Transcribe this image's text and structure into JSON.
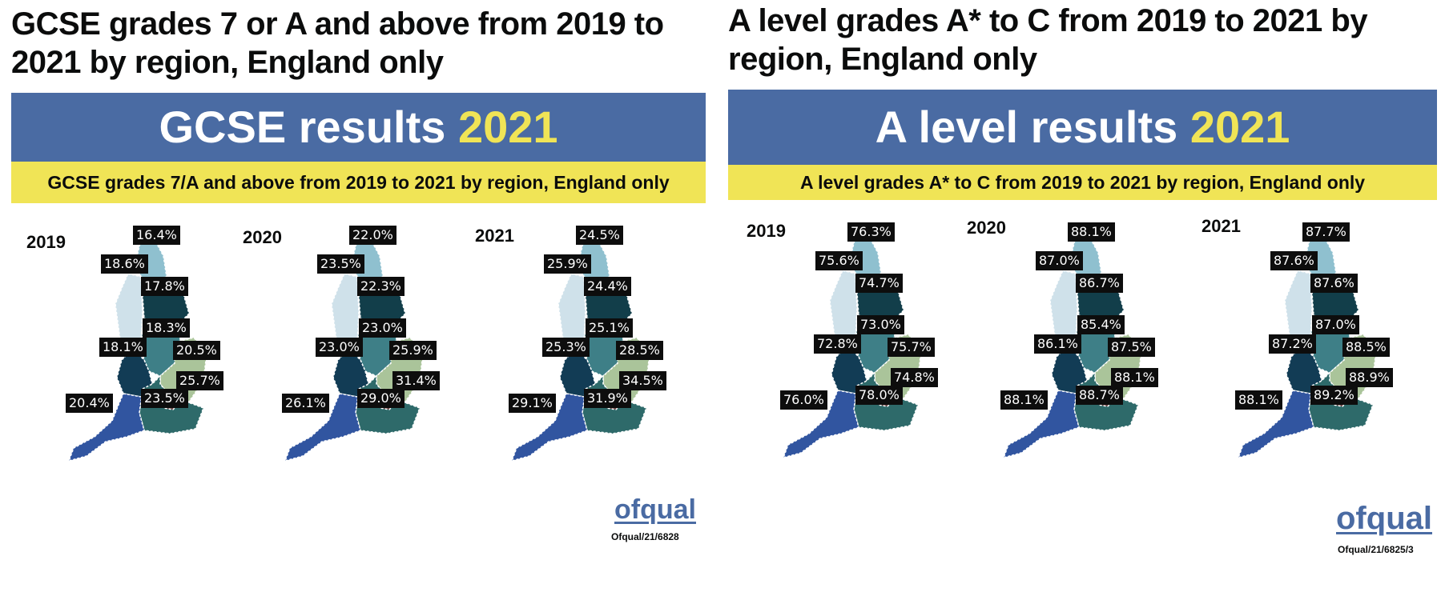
{
  "colors": {
    "banner_blue": "#4a6ba3",
    "banner_year_yellow": "#f0e456",
    "strip_yellow": "#f0e456",
    "label_bg": "#0d0d0d",
    "logo_blue": "#4a6ba3",
    "region_north_east": "#8fc0cf",
    "region_north_west": "#cfe1ea",
    "region_yorkshire": "#123e4a",
    "region_east_midlands": "#3e7f87",
    "region_west_midlands": "#123c55",
    "region_east": "#aac49a",
    "region_london": "#6a3d3d",
    "region_south_east": "#2e6a6a",
    "region_south_west": "#3155a0"
  },
  "left": {
    "heading": "GCSE grades 7 or A and above from 2019 to 2021 by region, England only",
    "banner_text": "GCSE results",
    "banner_year": "2021",
    "strip_text": "GCSE grades 7/A and above from 2019 to 2021 by region, England only",
    "maps": [
      {
        "year": "2019",
        "values": {
          "north_east": "16.4%",
          "north_west": "18.6%",
          "yorkshire": "17.8%",
          "east_midlands": "18.3%",
          "west_midlands": "18.1%",
          "east": "20.5%",
          "london": "25.7%",
          "south_east": "23.5%",
          "south_west": "20.4%"
        }
      },
      {
        "year": "2020",
        "values": {
          "north_east": "22.0%",
          "north_west": "23.5%",
          "yorkshire": "22.3%",
          "east_midlands": "23.0%",
          "west_midlands": "23.0%",
          "east": "25.9%",
          "london": "31.4%",
          "south_east": "29.0%",
          "south_west": "26.1%"
        }
      },
      {
        "year": "2021",
        "values": {
          "north_east": "24.5%",
          "north_west": "25.9%",
          "yorkshire": "24.4%",
          "east_midlands": "25.1%",
          "west_midlands": "25.3%",
          "east": "28.5%",
          "london": "34.5%",
          "south_east": "31.9%",
          "south_west": "29.1%"
        }
      }
    ],
    "logo": "ofqual",
    "reference": "Ofqual/21/6828"
  },
  "right": {
    "heading": "A level grades A* to C from 2019 to 2021 by region, England only",
    "banner_text": "A level results",
    "banner_year": "2021",
    "strip_text": "A level grades A* to C from 2019 to 2021 by region, England only",
    "maps": [
      {
        "year": "2019",
        "values": {
          "north_east": "76.3%",
          "north_west": "75.6%",
          "yorkshire": "74.7%",
          "east_midlands": "73.0%",
          "west_midlands": "72.8%",
          "east": "75.7%",
          "london": "74.8%",
          "south_east": "78.0%",
          "south_west": "76.0%"
        }
      },
      {
        "year": "2020",
        "values": {
          "north_east": "88.1%",
          "north_west": "87.0%",
          "yorkshire": "86.7%",
          "east_midlands": "85.4%",
          "west_midlands": "86.1%",
          "east": "87.5%",
          "london": "88.1%",
          "south_east": "88.7%",
          "south_west": "88.1%"
        }
      },
      {
        "year": "2021",
        "values": {
          "north_east": "87.7%",
          "north_west": "87.6%",
          "yorkshire": "87.6%",
          "east_midlands": "87.0%",
          "west_midlands": "87.2%",
          "east": "88.5%",
          "london": "88.9%",
          "south_east": "89.2%",
          "south_west": "88.1%"
        }
      }
    ],
    "logo": "ofqual",
    "reference": "Ofqual/21/6825/3"
  }
}
